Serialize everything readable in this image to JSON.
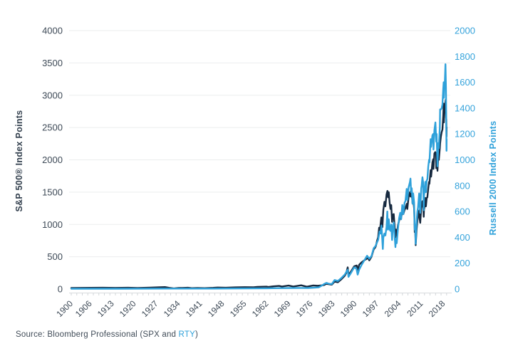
{
  "axes": {
    "left_title": "S&P 500® Index Points",
    "right_title": "Russell 2000 Index Points"
  },
  "source": {
    "prefix": "Source: Bloomberg Professional (SPX and ",
    "ticker": "RTY",
    "suffix": ")"
  },
  "colors": {
    "spx_line": "#16293f",
    "rty_line": "#2fa1da",
    "left_tick_text": "#3e4a57",
    "right_tick_text": "#35a3db",
    "x_tick_text": "#3e4a57",
    "gridline": "#ebedee",
    "axis_line": "#d8dbdd",
    "minor_tick": "#d2d6d9",
    "background": "#ffffff"
  },
  "chart_data": {
    "type": "line",
    "title": "",
    "xlabel": "",
    "x_range": [
      1900,
      2019.5
    ],
    "x_tick_labels": [
      "1900",
      "1906",
      "1913",
      "1920",
      "1927",
      "1934",
      "1941",
      "1948",
      "1955",
      "1962",
      "1969",
      "1976",
      "1983",
      "1990",
      "1997",
      "2004",
      "2011",
      "2018"
    ],
    "minor_tick_step_years": 1.75,
    "grid": true,
    "legend_position": "none",
    "left_axis": {
      "label": "S&P 500® Index Points",
      "min": 0,
      "max": 4000,
      "step": 500
    },
    "right_axis": {
      "label": "Russell 2000 Index Points",
      "min": 0,
      "max": 2000,
      "step": 200
    },
    "series": [
      {
        "name": "S&P 500 (SPX)",
        "axis": "left",
        "color": "#16293f",
        "points": [
          [
            1900,
            18
          ],
          [
            1906,
            20
          ],
          [
            1910,
            21
          ],
          [
            1914,
            19
          ],
          [
            1918,
            21
          ],
          [
            1921,
            18
          ],
          [
            1925,
            23
          ],
          [
            1928,
            27
          ],
          [
            1929.7,
            31
          ],
          [
            1931,
            20
          ],
          [
            1932.5,
            10
          ],
          [
            1934,
            16
          ],
          [
            1937,
            21
          ],
          [
            1938.2,
            14
          ],
          [
            1940,
            17
          ],
          [
            1942.3,
            14
          ],
          [
            1945,
            20
          ],
          [
            1946.4,
            24
          ],
          [
            1949,
            21
          ],
          [
            1952,
            26
          ],
          [
            1955,
            30
          ],
          [
            1957.8,
            28
          ],
          [
            1959,
            34
          ],
          [
            1961.9,
            38
          ],
          [
            1962.5,
            32
          ],
          [
            1964,
            42
          ],
          [
            1965.9,
            48
          ],
          [
            1966.8,
            40
          ],
          [
            1968.9,
            54
          ],
          [
            1970.4,
            40
          ],
          [
            1972.9,
            58
          ],
          [
            1974.7,
            36
          ],
          [
            1976.7,
            56
          ],
          [
            1978.2,
            52
          ],
          [
            1980.1,
            62
          ],
          [
            1980.9,
            80
          ],
          [
            1982.6,
            68
          ],
          [
            1983.5,
            115
          ],
          [
            1984.5,
            105
          ],
          [
            1985.5,
            145
          ],
          [
            1986.7,
            205
          ],
          [
            1987.2,
            250
          ],
          [
            1987.65,
            336
          ],
          [
            1987.9,
            224
          ],
          [
            1988.5,
            258
          ],
          [
            1989.7,
            353
          ],
          [
            1990.5,
            365
          ],
          [
            1990.8,
            296
          ],
          [
            1991.3,
            378
          ],
          [
            1992,
            412
          ],
          [
            1993,
            448
          ],
          [
            1994.1,
            480
          ],
          [
            1994.5,
            444
          ],
          [
            1995.2,
            500
          ],
          [
            1995.9,
            615
          ],
          [
            1996.4,
            645
          ],
          [
            1996.6,
            668
          ],
          [
            1996.95,
            748
          ],
          [
            1997.3,
            800
          ],
          [
            1997.6,
            950
          ],
          [
            1997.85,
            905
          ],
          [
            1998.3,
            1110
          ],
          [
            1998.65,
            960
          ],
          [
            1998.95,
            1225
          ],
          [
            1999.3,
            1350
          ],
          [
            1999.6,
            1280
          ],
          [
            1999.95,
            1465
          ],
          [
            2000.25,
            1520
          ],
          [
            2000.45,
            1420
          ],
          [
            2000.65,
            1500
          ],
          [
            2000.95,
            1330
          ],
          [
            2001.2,
            1240
          ],
          [
            2001.45,
            1300
          ],
          [
            2001.72,
            1040
          ],
          [
            2001.95,
            1150
          ],
          [
            2002.25,
            1160
          ],
          [
            2002.55,
            950
          ],
          [
            2002.78,
            785
          ],
          [
            2002.95,
            920
          ],
          [
            2003.2,
            830
          ],
          [
            2003.6,
            990
          ],
          [
            2003.95,
            1060
          ],
          [
            2004.3,
            1130
          ],
          [
            2004.6,
            1095
          ],
          [
            2004.95,
            1210
          ],
          [
            2005.3,
            1160
          ],
          [
            2005.7,
            1230
          ],
          [
            2005.95,
            1250
          ],
          [
            2006.4,
            1320
          ],
          [
            2006.55,
            1240
          ],
          [
            2006.95,
            1420
          ],
          [
            2007.4,
            1500
          ],
          [
            2007.6,
            1430
          ],
          [
            2007.78,
            1560
          ],
          [
            2007.95,
            1480
          ],
          [
            2008.2,
            1330
          ],
          [
            2008.4,
            1405
          ],
          [
            2008.7,
            1250
          ],
          [
            2008.78,
            1160
          ],
          [
            2008.9,
            880
          ],
          [
            2009.05,
            930
          ],
          [
            2009.2,
            680
          ],
          [
            2009.5,
            920
          ],
          [
            2009.75,
            1060
          ],
          [
            2009.95,
            1115
          ],
          [
            2010.3,
            1215
          ],
          [
            2010.5,
            1070
          ],
          [
            2010.65,
            1025
          ],
          [
            2010.95,
            1250
          ],
          [
            2011.1,
            1290
          ],
          [
            2011.35,
            1360
          ],
          [
            2011.55,
            1320
          ],
          [
            2011.75,
            1120
          ],
          [
            2011.85,
            1230
          ],
          [
            2011.95,
            1255
          ],
          [
            2012.25,
            1410
          ],
          [
            2012.45,
            1280
          ],
          [
            2012.7,
            1410
          ],
          [
            2012.9,
            1420
          ],
          [
            2013.2,
            1560
          ],
          [
            2013.45,
            1660
          ],
          [
            2013.55,
            1630
          ],
          [
            2013.95,
            1840
          ],
          [
            2014.1,
            1740
          ],
          [
            2014.5,
            1960
          ],
          [
            2014.78,
            2010
          ],
          [
            2014.85,
            1860
          ],
          [
            2015.15,
            2100
          ],
          [
            2015.4,
            2120
          ],
          [
            2015.65,
            2100
          ],
          [
            2015.72,
            1870
          ],
          [
            2015.85,
            2100
          ],
          [
            2016.05,
            2040
          ],
          [
            2016.12,
            1830
          ],
          [
            2016.4,
            2080
          ],
          [
            2016.55,
            2000
          ],
          [
            2016.85,
            2180
          ],
          [
            2016.95,
            2250
          ],
          [
            2017.2,
            2360
          ],
          [
            2017.45,
            2430
          ],
          [
            2017.7,
            2470
          ],
          [
            2017.95,
            2680
          ],
          [
            2018.07,
            2870
          ],
          [
            2018.15,
            2580
          ],
          [
            2018.25,
            2720
          ],
          [
            2018.45,
            2780
          ],
          [
            2018.6,
            2875
          ],
          [
            2018.72,
            2930
          ],
          [
            2018.85,
            2650
          ],
          [
            2018.92,
            2630
          ],
          [
            2018.97,
            2360
          ],
          [
            2019,
            2505
          ]
        ]
      },
      {
        "name": "Russell 2000 (RTY)",
        "axis": "right",
        "color": "#2fa1da",
        "points": [
          [
            1900,
            3
          ],
          [
            1915,
            3
          ],
          [
            1930,
            4
          ],
          [
            1945,
            4
          ],
          [
            1955,
            5
          ],
          [
            1962,
            6
          ],
          [
            1966,
            7
          ],
          [
            1970,
            8
          ],
          [
            1973,
            9
          ],
          [
            1975,
            8
          ],
          [
            1977,
            11
          ],
          [
            1978.5,
            14
          ],
          [
            1979.3,
            25
          ],
          [
            1980.1,
            38
          ],
          [
            1980.9,
            48
          ],
          [
            1981.6,
            42
          ],
          [
            1982.6,
            38
          ],
          [
            1983.5,
            70
          ],
          [
            1984.5,
            62
          ],
          [
            1985.5,
            82
          ],
          [
            1986.7,
            112
          ],
          [
            1987.65,
            150
          ],
          [
            1987.9,
            95
          ],
          [
            1988.5,
            118
          ],
          [
            1989.7,
            168
          ],
          [
            1990.4,
            160
          ],
          [
            1990.8,
            112
          ],
          [
            1991.3,
            152
          ],
          [
            1992,
            185
          ],
          [
            1992.9,
            221
          ],
          [
            1993.8,
            258
          ],
          [
            1994.5,
            235
          ],
          [
            1995.2,
            255
          ],
          [
            1995.9,
            316
          ],
          [
            1996.4,
            330
          ],
          [
            1996.7,
            346
          ],
          [
            1996.95,
            362
          ],
          [
            1997.3,
            380
          ],
          [
            1997.75,
            445
          ],
          [
            1998.05,
            430
          ],
          [
            1998.35,
            492
          ],
          [
            1998.78,
            310
          ],
          [
            1998.95,
            398
          ],
          [
            1999.3,
            430
          ],
          [
            1999.6,
            415
          ],
          [
            1999.95,
            480
          ],
          [
            2000.2,
            600
          ],
          [
            2000.4,
            460
          ],
          [
            2000.65,
            540
          ],
          [
            2000.95,
            460
          ],
          [
            2001.2,
            450
          ],
          [
            2001.45,
            500
          ],
          [
            2001.72,
            380
          ],
          [
            2001.95,
            480
          ],
          [
            2002.25,
            515
          ],
          [
            2002.55,
            400
          ],
          [
            2002.78,
            325
          ],
          [
            2002.95,
            390
          ],
          [
            2003.2,
            355
          ],
          [
            2003.6,
            470
          ],
          [
            2003.95,
            550
          ],
          [
            2004.3,
            590
          ],
          [
            2004.6,
            540
          ],
          [
            2004.95,
            650
          ],
          [
            2005.3,
            580
          ],
          [
            2005.7,
            670
          ],
          [
            2005.95,
            680
          ],
          [
            2006.35,
            775
          ],
          [
            2006.55,
            690
          ],
          [
            2006.95,
            785
          ],
          [
            2007.4,
            830
          ],
          [
            2007.55,
            855
          ],
          [
            2007.75,
            750
          ],
          [
            2007.95,
            780
          ],
          [
            2008.2,
            660
          ],
          [
            2008.4,
            740
          ],
          [
            2008.7,
            670
          ],
          [
            2008.9,
            460
          ],
          [
            2009.05,
            500
          ],
          [
            2009.2,
            350
          ],
          [
            2009.5,
            520
          ],
          [
            2009.75,
            600
          ],
          [
            2009.95,
            630
          ],
          [
            2010.3,
            740
          ],
          [
            2010.5,
            640
          ],
          [
            2010.65,
            590
          ],
          [
            2010.95,
            780
          ],
          [
            2011.1,
            800
          ],
          [
            2011.35,
            865
          ],
          [
            2011.55,
            830
          ],
          [
            2011.75,
            610
          ],
          [
            2011.85,
            720
          ],
          [
            2011.95,
            745
          ],
          [
            2012.25,
            830
          ],
          [
            2012.45,
            750
          ],
          [
            2012.7,
            840
          ],
          [
            2012.9,
            850
          ],
          [
            2013.2,
            950
          ],
          [
            2013.45,
            1000
          ],
          [
            2013.55,
            980
          ],
          [
            2013.95,
            1160
          ],
          [
            2014.1,
            1100
          ],
          [
            2014.5,
            1190
          ],
          [
            2014.78,
            1200
          ],
          [
            2014.85,
            1080
          ],
          [
            2015.15,
            1230
          ],
          [
            2015.45,
            1290
          ],
          [
            2015.72,
            1140
          ],
          [
            2015.85,
            1200
          ],
          [
            2016.12,
            950
          ],
          [
            2016.4,
            1130
          ],
          [
            2016.55,
            1090
          ],
          [
            2016.85,
            1250
          ],
          [
            2016.95,
            1390
          ],
          [
            2017.2,
            1390
          ],
          [
            2017.45,
            1400
          ],
          [
            2017.7,
            1430
          ],
          [
            2017.95,
            1550
          ],
          [
            2018.07,
            1600
          ],
          [
            2018.15,
            1480
          ],
          [
            2018.25,
            1550
          ],
          [
            2018.45,
            1610
          ],
          [
            2018.65,
            1740
          ],
          [
            2018.8,
            1560
          ],
          [
            2018.9,
            1300
          ],
          [
            2018.97,
            1070
          ],
          [
            2019,
            1160
          ]
        ]
      }
    ]
  }
}
